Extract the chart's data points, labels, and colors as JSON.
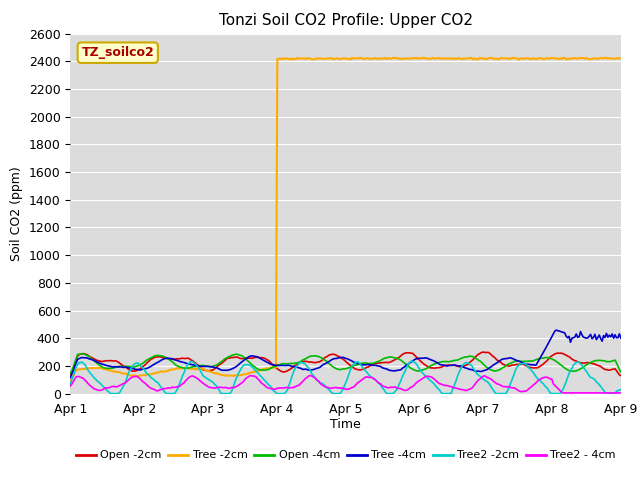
{
  "title": "Tonzi Soil CO2 Profile: Upper CO2",
  "ylabel": "Soil CO2 (ppm)",
  "xlabel": "Time",
  "ylim": [
    0,
    2600
  ],
  "yticks": [
    0,
    200,
    400,
    600,
    800,
    1000,
    1200,
    1400,
    1600,
    1800,
    2000,
    2200,
    2400,
    2600
  ],
  "x_tick_days": [
    1,
    2,
    3,
    4,
    5,
    6,
    7,
    8,
    9
  ],
  "x_tick_labels": [
    "Apr 1",
    "Apr 2",
    "Apr 3",
    "Apr 4",
    "Apr 5",
    "Apr 6",
    "Apr 7",
    "Apr 8",
    "Apr 9"
  ],
  "plot_bg_color": "#dcdcdc",
  "grid_color": "#ffffff",
  "legend_label": "TZ_soilco2",
  "legend_box_facecolor": "#ffffcc",
  "legend_box_edgecolor": "#ccaa00",
  "legend_text_color": "#aa0000",
  "title_fontsize": 11,
  "axis_fontsize": 9,
  "tick_fontsize": 9,
  "series": [
    {
      "label": "Open -2cm",
      "color": "#dd0000",
      "lw": 1.2
    },
    {
      "label": "Tree -2cm",
      "color": "#ffaa00",
      "lw": 1.5
    },
    {
      "label": "Open -4cm",
      "color": "#00bb00",
      "lw": 1.2
    },
    {
      "label": "Tree -4cm",
      "color": "#0000cc",
      "lw": 1.2
    },
    {
      "label": "Tree2 -2cm",
      "color": "#00cccc",
      "lw": 1.2
    },
    {
      "label": "Tree2 - 4cm",
      "color": "#ff00ff",
      "lw": 1.2
    }
  ]
}
